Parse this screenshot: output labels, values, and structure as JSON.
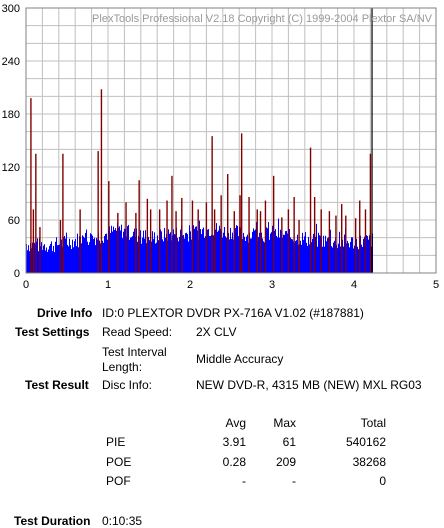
{
  "chart_data": {
    "type": "bar",
    "title": "PlexTools Professional V2.18 Copyright (C) 1999-2004 Plextor SA/NV",
    "xlabel": "",
    "ylabel": "",
    "xlim": [
      0,
      5
    ],
    "ylim": [
      0,
      300
    ],
    "x_ticks": [
      "0",
      "1",
      "2",
      "3",
      "4",
      "5"
    ],
    "y_ticks": [
      "0",
      "60",
      "120",
      "180",
      "240",
      "300"
    ],
    "grid": true,
    "x_end": 4.22,
    "colors": {
      "pie_bars": "#0000ff",
      "poe_lines": "#800000",
      "end_marker": "#000000",
      "grid": "#c0c0c0",
      "frame": "#808080"
    },
    "series": [
      {
        "kind": "pie-envelope",
        "points": [
          [
            0.0,
            38
          ],
          [
            0.1,
            36
          ],
          [
            0.2,
            37
          ],
          [
            0.3,
            36
          ],
          [
            0.4,
            38
          ],
          [
            0.5,
            40
          ],
          [
            0.6,
            42
          ],
          [
            0.7,
            44
          ],
          [
            0.8,
            45
          ],
          [
            0.9,
            46
          ],
          [
            1.0,
            50
          ],
          [
            1.1,
            54
          ],
          [
            1.2,
            52
          ],
          [
            1.3,
            50
          ],
          [
            1.4,
            46
          ],
          [
            1.5,
            45
          ],
          [
            1.6,
            46
          ],
          [
            1.7,
            48
          ],
          [
            1.8,
            50
          ],
          [
            1.9,
            48
          ],
          [
            2.0,
            50
          ],
          [
            2.1,
            52
          ],
          [
            2.2,
            54
          ],
          [
            2.3,
            55
          ],
          [
            2.4,
            52
          ],
          [
            2.5,
            52
          ],
          [
            2.6,
            50
          ],
          [
            2.7,
            48
          ],
          [
            2.8,
            50
          ],
          [
            2.9,
            48
          ],
          [
            3.0,
            50
          ],
          [
            3.1,
            48
          ],
          [
            3.2,
            46
          ],
          [
            3.3,
            45
          ],
          [
            3.4,
            44
          ],
          [
            3.5,
            42
          ],
          [
            3.6,
            42
          ],
          [
            3.7,
            41
          ],
          [
            3.8,
            40
          ],
          [
            3.9,
            40
          ],
          [
            4.0,
            40
          ],
          [
            4.1,
            41
          ],
          [
            4.22,
            42
          ]
        ]
      },
      {
        "kind": "poe-spikes",
        "points": [
          [
            0.06,
            198
          ],
          [
            0.09,
            72
          ],
          [
            0.12,
            135
          ],
          [
            0.17,
            52
          ],
          [
            0.42,
            60
          ],
          [
            0.45,
            135
          ],
          [
            0.66,
            72
          ],
          [
            0.88,
            138
          ],
          [
            0.92,
            208
          ],
          [
            1.01,
            104
          ],
          [
            1.12,
            68
          ],
          [
            1.22,
            80
          ],
          [
            1.34,
            68
          ],
          [
            1.38,
            105
          ],
          [
            1.48,
            84
          ],
          [
            1.52,
            72
          ],
          [
            1.63,
            72
          ],
          [
            1.72,
            82
          ],
          [
            1.78,
            110
          ],
          [
            1.83,
            70
          ],
          [
            1.9,
            85
          ],
          [
            2.03,
            82
          ],
          [
            2.1,
            72
          ],
          [
            2.2,
            80
          ],
          [
            2.27,
            155
          ],
          [
            2.3,
            72
          ],
          [
            2.38,
            88
          ],
          [
            2.46,
            112
          ],
          [
            2.54,
            70
          ],
          [
            2.61,
            88
          ],
          [
            2.63,
            158
          ],
          [
            2.72,
            86
          ],
          [
            2.82,
            72
          ],
          [
            2.86,
            70
          ],
          [
            2.92,
            82
          ],
          [
            3.02,
            110
          ],
          [
            3.12,
            63
          ],
          [
            3.2,
            72
          ],
          [
            3.27,
            86
          ],
          [
            3.33,
            60
          ],
          [
            3.47,
            142
          ],
          [
            3.52,
            86
          ],
          [
            3.6,
            72
          ],
          [
            3.7,
            70
          ],
          [
            3.78,
            65
          ],
          [
            3.85,
            78
          ],
          [
            3.9,
            65
          ],
          [
            4.02,
            62
          ],
          [
            4.07,
            82
          ],
          [
            4.14,
            72
          ],
          [
            4.2,
            135
          ]
        ]
      }
    ]
  },
  "drive_info": {
    "label": "Drive Info",
    "value": "ID:0 PLEXTOR DVDR PX-716A V1.02 (#187881)"
  },
  "test_settings": {
    "label": "Test Settings",
    "read_speed_label": "Read Speed:",
    "read_speed_value": "2X CLV",
    "interval_label_1": "Test Interval",
    "interval_label_2": "Length:",
    "interval_value": "Middle Accuracy"
  },
  "test_result": {
    "label": "Test Result",
    "disc_info_label": "Disc Info:",
    "disc_info_value": "NEW DVD-R, 4315 MB (NEW) MXL RG03",
    "headers": [
      "Avg",
      "Max",
      "Total"
    ],
    "rows": [
      {
        "name": "PIE",
        "avg": "3.91",
        "max": "61",
        "total": "540162"
      },
      {
        "name": "POE",
        "avg": "0.28",
        "max": "209",
        "total": "38268"
      },
      {
        "name": "POF",
        "avg": "-",
        "max": "-",
        "total": "0"
      }
    ]
  },
  "test_duration": {
    "label": "Test Duration",
    "value": "0:10:35"
  }
}
